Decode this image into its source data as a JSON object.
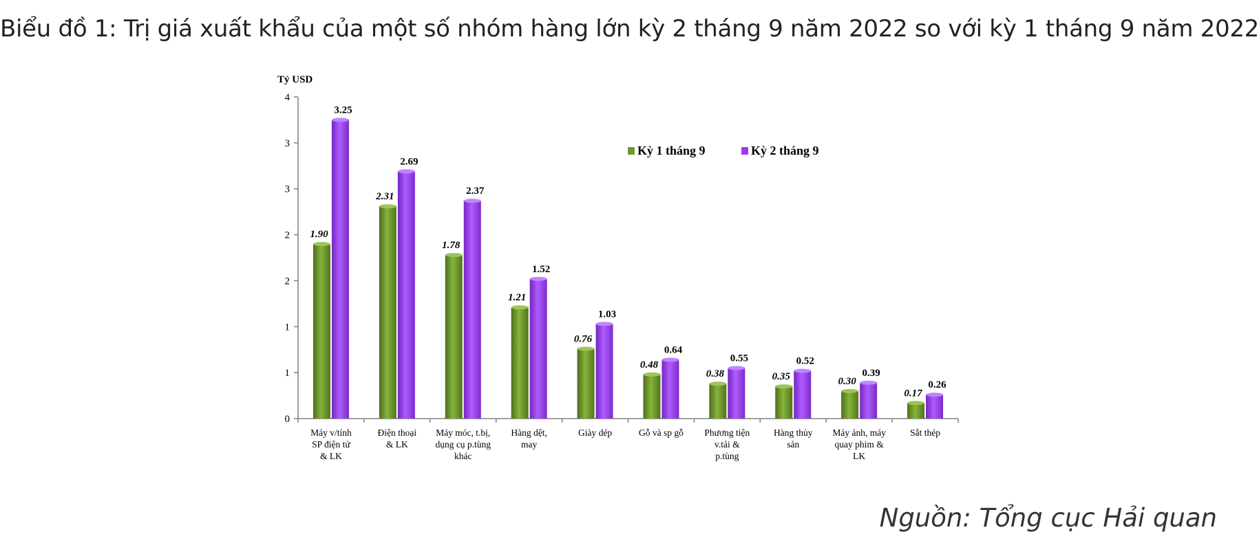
{
  "title": "Biểu đồ 1: Trị giá xuất khẩu của một số nhóm hàng lớn kỳ 2 tháng 9 năm 2022 so với kỳ 1 tháng 9 năm 2022",
  "source": "Nguồn: Tổng cục Hải quan",
  "chart_data": {
    "type": "bar",
    "ylabel": "Tỷ USD",
    "ylim": [
      0,
      3.5
    ],
    "yticks": [
      {
        "value": 0,
        "label": "0"
      },
      {
        "value": 0.5,
        "label": "1"
      },
      {
        "value": 1.0,
        "label": "1"
      },
      {
        "value": 1.5,
        "label": "2"
      },
      {
        "value": 2.0,
        "label": "2"
      },
      {
        "value": 2.5,
        "label": "3"
      },
      {
        "value": 3.0,
        "label": "3"
      },
      {
        "value": 3.5,
        "label": "4"
      }
    ],
    "categories": [
      [
        "Máy v/tính",
        "SP điện tử",
        "& LK"
      ],
      [
        "Điện thoại",
        "& LK"
      ],
      [
        "Máy móc, t.bị,",
        "dụng cụ p.tùng",
        "khác"
      ],
      [
        "Hàng dệt,",
        "may"
      ],
      [
        "Giày dép"
      ],
      [
        "Gỗ và sp gỗ"
      ],
      [
        "Phương tiện",
        "v.tải &",
        "p.tùng"
      ],
      [
        "Hàng thủy",
        "sản"
      ],
      [
        "Máy ảnh, máy",
        "quay phim &",
        "LK"
      ],
      [
        "Sắt thép"
      ]
    ],
    "series": [
      {
        "name": "Kỳ 1 tháng 9",
        "color": "#6e9a2c",
        "values": [
          1.9,
          2.31,
          1.78,
          1.21,
          0.76,
          0.48,
          0.38,
          0.35,
          0.3,
          0.17
        ],
        "labels": [
          "1.90",
          "2.31",
          "1.78",
          "1.21",
          "0.76",
          "0.48",
          "0.38",
          "0.35",
          "0.30",
          "0.17"
        ]
      },
      {
        "name": "Kỳ 2 tháng 9",
        "color": "#9a3de8",
        "values": [
          3.25,
          2.69,
          2.37,
          1.52,
          1.03,
          0.64,
          0.55,
          0.52,
          0.39,
          0.26
        ],
        "labels": [
          "3.25",
          "2.69",
          "2.37",
          "1.52",
          "1.03",
          "0.64",
          "0.55",
          "0.52",
          "0.39",
          "0.26"
        ]
      }
    ],
    "legend_position": "top-right"
  }
}
